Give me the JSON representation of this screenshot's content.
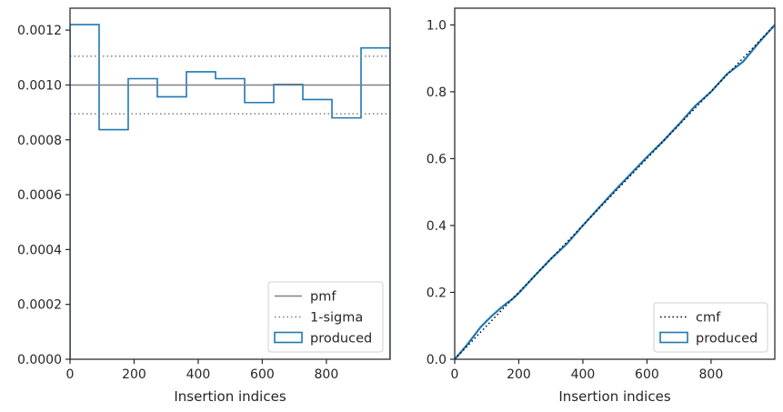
{
  "chart_data": [
    {
      "type": "histogram",
      "xlabel": "Insertion indices",
      "ylabel": "",
      "xlim": [
        0,
        999
      ],
      "ylim": [
        0,
        0.00128
      ],
      "xticks": [
        0,
        200,
        400,
        600,
        800
      ],
      "xtick_labels": [
        "0",
        "200",
        "400",
        "600",
        "800"
      ],
      "yticks": [
        0,
        0.0002,
        0.0004,
        0.0006,
        0.0008,
        0.001,
        0.0012
      ],
      "ytick_labels": [
        "0.0000",
        "0.0002",
        "0.0004",
        "0.0006",
        "0.0008",
        "0.0010",
        "0.0012"
      ],
      "bin_edges": [
        0,
        90.8,
        181.6,
        272.5,
        363.3,
        454.1,
        544.9,
        635.7,
        726.5,
        817.4,
        908.2,
        999
      ],
      "series": [
        {
          "name": "produced",
          "style": "step",
          "color": "#1f77b4",
          "values": [
            0.00122,
            0.000837,
            0.001023,
            0.000957,
            0.001048,
            0.001023,
            0.000936,
            0.001002,
            0.000947,
            0.00088,
            0.001135
          ]
        },
        {
          "name": "pmf",
          "style": "solid-hline",
          "color": "#808080",
          "values": [
            0.001
          ]
        },
        {
          "name": "1-sigma",
          "style": "dotted-hlines",
          "color": "#808080",
          "values": [
            0.001105,
            0.000895
          ]
        }
      ],
      "legend": {
        "position": "lower-right",
        "entries": [
          "pmf",
          "1-sigma",
          "produced"
        ]
      },
      "grid": false
    },
    {
      "type": "line",
      "xlabel": "Insertion indices",
      "ylabel": "",
      "xlim": [
        0,
        999
      ],
      "ylim": [
        0,
        1.05
      ],
      "xticks": [
        0,
        200,
        400,
        600,
        800
      ],
      "xtick_labels": [
        "0",
        "200",
        "400",
        "600",
        "800"
      ],
      "yticks": [
        0,
        0.2,
        0.4,
        0.6,
        0.8,
        1.0
      ],
      "ytick_labels": [
        "0.0",
        "0.2",
        "0.4",
        "0.6",
        "0.8",
        "1.0"
      ],
      "series": [
        {
          "name": "cmf",
          "style": "dotted",
          "color": "#000000",
          "x": [
            0,
            999
          ],
          "y": [
            0,
            1.0
          ]
        },
        {
          "name": "produced",
          "style": "step",
          "color": "#1f77b4",
          "x": [
            0,
            20,
            40,
            60,
            80,
            100,
            120,
            140,
            160,
            180,
            200,
            250,
            300,
            350,
            400,
            450,
            500,
            550,
            600,
            650,
            700,
            750,
            800,
            850,
            900,
            950,
            999
          ],
          "y": [
            0,
            0.022,
            0.045,
            0.07,
            0.095,
            0.115,
            0.133,
            0.15,
            0.166,
            0.18,
            0.198,
            0.25,
            0.3,
            0.345,
            0.4,
            0.453,
            0.505,
            0.555,
            0.605,
            0.652,
            0.703,
            0.757,
            0.8,
            0.853,
            0.89,
            0.948,
            1.0
          ]
        }
      ],
      "legend": {
        "position": "lower-right",
        "entries": [
          "cmf",
          "produced"
        ]
      },
      "grid": false
    }
  ]
}
